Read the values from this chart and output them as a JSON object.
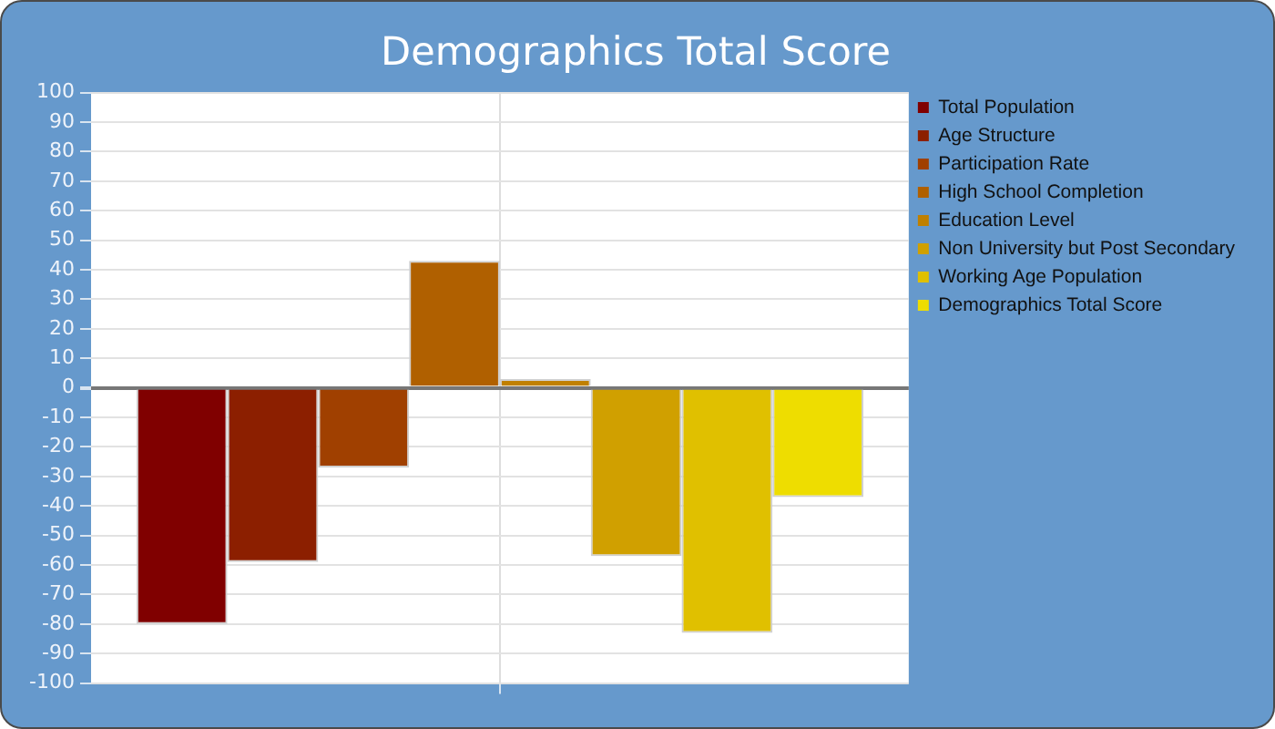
{
  "chart_data": {
    "type": "bar",
    "title": "Demographics Total Score",
    "categories": [
      null
    ],
    "series": [
      {
        "name": "Total Population",
        "color": "#800000",
        "values": [
          -80
        ]
      },
      {
        "name": "Age Structure",
        "color": "#8c1f00",
        "values": [
          -59
        ]
      },
      {
        "name": "Participation Rate",
        "color": "#a04000",
        "values": [
          -27
        ]
      },
      {
        "name": "High School Completion",
        "color": "#b06000",
        "values": [
          43
        ]
      },
      {
        "name": "Education Level",
        "color": "#c08000",
        "values": [
          3
        ]
      },
      {
        "name": "Non University but Post Secondary",
        "color": "#d0a000",
        "values": [
          -57
        ]
      },
      {
        "name": "Working Age Population",
        "color": "#e0c000",
        "values": [
          -83
        ]
      },
      {
        "name": "Demographics Total Score",
        "color": "#eedd00",
        "values": [
          -37
        ]
      }
    ],
    "ylim": [
      -100,
      100
    ],
    "yticks": [
      -100,
      -90,
      -80,
      -70,
      -60,
      -50,
      -40,
      -30,
      -20,
      -10,
      0,
      10,
      20,
      30,
      40,
      50,
      60,
      70,
      80,
      90,
      100
    ],
    "grid": true,
    "legend": "right"
  }
}
